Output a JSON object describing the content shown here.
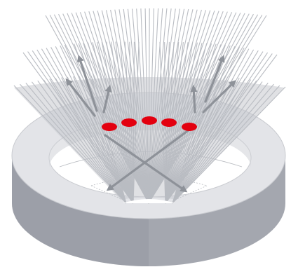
{
  "diagram": {
    "ring": {
      "top_color": "#e3e4e8",
      "side_color": "#a4a7af",
      "side_dark_color": "#8f939b",
      "edge_color": "#c9cbd0",
      "hole_color": "#ffffff"
    },
    "fan": {
      "fill_color": "#c7c9ce",
      "fill_opacity": 0.55,
      "line_color": "#b9bcc2"
    },
    "arrows": {
      "color": "#8e9299",
      "count": 8
    },
    "markers": {
      "color": "#e3000f",
      "count": 5
    },
    "guide_lines": {
      "color": "#b8bbc0"
    }
  }
}
